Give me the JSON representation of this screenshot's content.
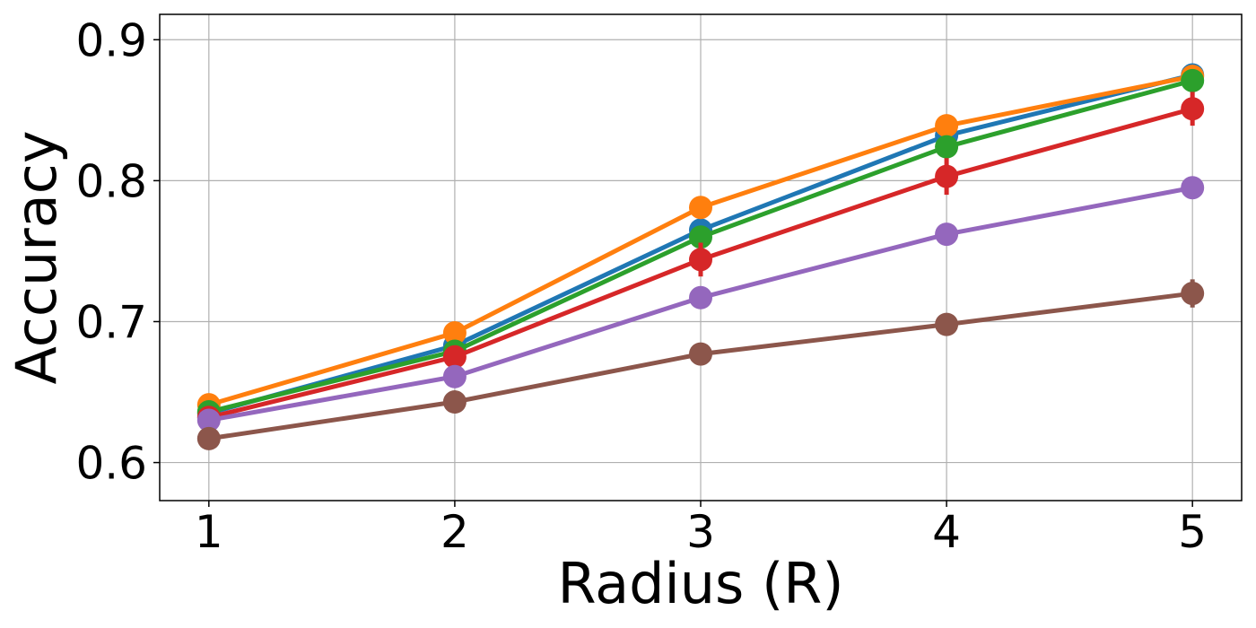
{
  "chart_data": {
    "type": "line",
    "title": "",
    "xlabel": "Radius (R)",
    "ylabel": "Accuracy",
    "x": [
      1,
      2,
      3,
      4,
      5
    ],
    "xlim": [
      0.8,
      5.2
    ],
    "ylim": [
      0.573,
      0.918
    ],
    "xticks": [
      1,
      2,
      3,
      4,
      5
    ],
    "yticks": [
      0.6,
      0.7,
      0.8,
      0.9
    ],
    "xtick_labels": [
      "1",
      "2",
      "3",
      "4",
      "5"
    ],
    "ytick_labels": [
      "0.6",
      "0.7",
      "0.8",
      "0.9"
    ],
    "grid": true,
    "legend": "none",
    "series": [
      {
        "color": "#1f77b4",
        "values": [
          0.635,
          0.683,
          0.765,
          0.832,
          0.875
        ],
        "errors": [
          0.003,
          0.003,
          0.004,
          0.006,
          0.003
        ]
      },
      {
        "color": "#ff7f0e",
        "values": [
          0.641,
          0.692,
          0.781,
          0.839,
          0.874
        ],
        "errors": [
          0.003,
          0.003,
          0.003,
          0.005,
          0.003
        ]
      },
      {
        "color": "#2ca02c",
        "values": [
          0.636,
          0.679,
          0.76,
          0.824,
          0.871
        ],
        "errors": [
          0.003,
          0.003,
          0.004,
          0.006,
          0.004
        ]
      },
      {
        "color": "#d62728",
        "values": [
          0.632,
          0.675,
          0.744,
          0.803,
          0.851
        ],
        "errors": [
          0.004,
          0.004,
          0.012,
          0.013,
          0.012
        ]
      },
      {
        "color": "#9467bd",
        "values": [
          0.63,
          0.661,
          0.717,
          0.762,
          0.795
        ],
        "errors": [
          0.003,
          0.003,
          0.004,
          0.004,
          0.004
        ]
      },
      {
        "color": "#8c564b",
        "values": [
          0.617,
          0.643,
          0.677,
          0.698,
          0.72
        ],
        "errors": [
          0.003,
          0.003,
          0.004,
          0.007,
          0.01
        ]
      }
    ]
  }
}
